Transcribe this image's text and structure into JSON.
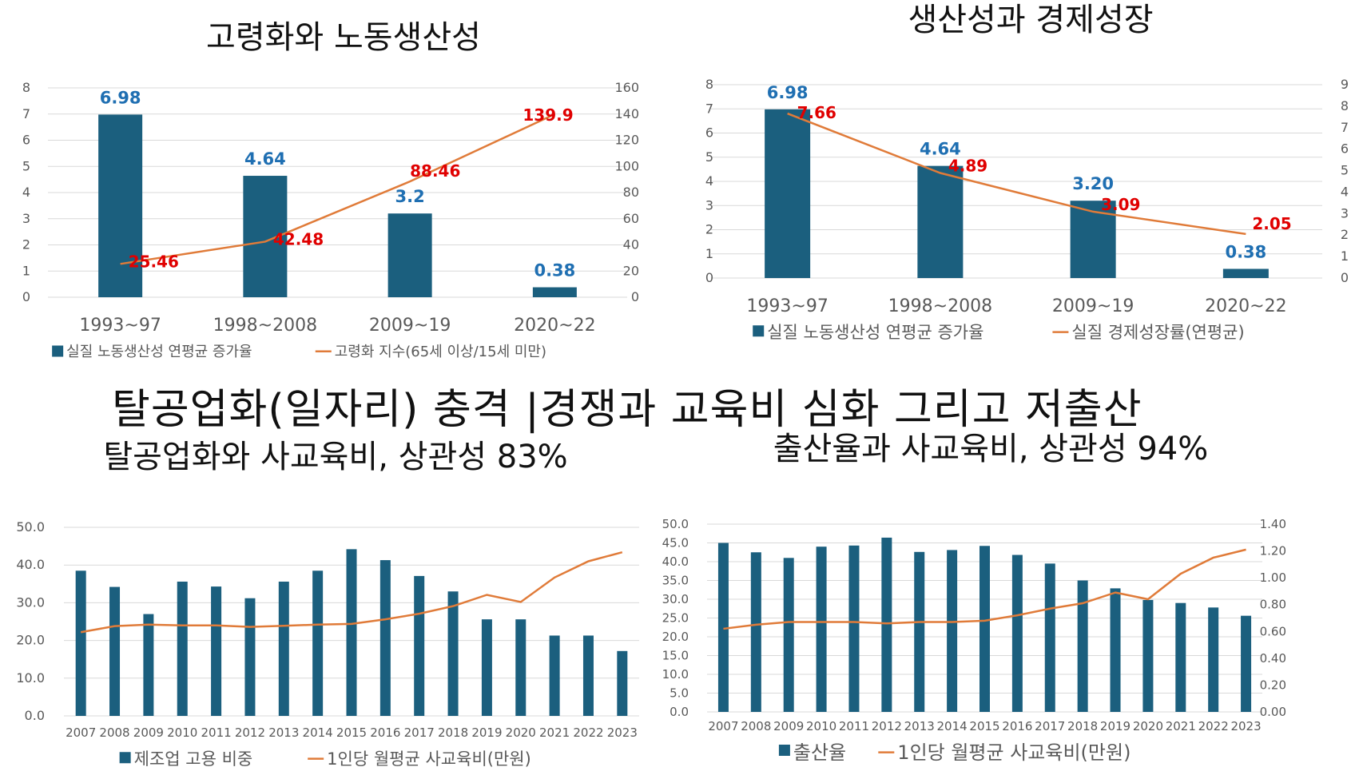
{
  "main_title": "탈공업화(일자리) 충격 |경쟁과 교육비 심화 그리고 저출산",
  "colors": {
    "bar": "#1b5f7e",
    "line": "#e07b39",
    "bar_label": "#1f6fb2",
    "line_label": "#e00000",
    "grid": "#d9d9d9",
    "axis_text": "#595959"
  },
  "chart_data": [
    {
      "id": "aging",
      "type": "bar+line",
      "title": "고령화와 노동생산성",
      "categories": [
        "1993~97",
        "1998~2008",
        "2009~19",
        "2020~22"
      ],
      "series": [
        {
          "name": "실질 노동생산성 연평균 증가율",
          "kind": "bar",
          "axis": "left",
          "values": [
            6.98,
            4.64,
            3.2,
            0.38
          ],
          "labels": [
            "6.98",
            "4.64",
            "3.2",
            "0.38"
          ]
        },
        {
          "name": "고령화 지수(65세 이상/15세 미만)",
          "kind": "line",
          "axis": "right",
          "values": [
            25.46,
            42.48,
            88.46,
            139.9
          ],
          "labels": [
            "25.46",
            "42.48",
            "88.46",
            "139.9"
          ]
        }
      ],
      "ylim": [
        0,
        8
      ],
      "yticks": [
        "0",
        "1",
        "2",
        "3",
        "4",
        "5",
        "6",
        "7",
        "8"
      ],
      "y2lim": [
        0,
        160
      ],
      "y2ticks": [
        "0",
        "20",
        "40",
        "60",
        "80",
        "100",
        "120",
        "140",
        "160"
      ],
      "grid": true,
      "legend": "bottom"
    },
    {
      "id": "growth",
      "type": "bar+line",
      "title": "생산성과 경제성장",
      "categories": [
        "1993~97",
        "1998~2008",
        "2009~19",
        "2020~22"
      ],
      "series": [
        {
          "name": "실질 노동생산성 연평균 증가율",
          "kind": "bar",
          "axis": "left",
          "values": [
            6.98,
            4.64,
            3.2,
            0.38
          ],
          "labels": [
            "6.98",
            "4.64",
            "3.20",
            "0.38"
          ]
        },
        {
          "name": "실질 경제성장률(연평균)",
          "kind": "line",
          "axis": "right",
          "values": [
            7.66,
            4.89,
            3.09,
            2.05
          ],
          "labels": [
            "7.66",
            "4.89",
            "3.09",
            "2.05"
          ]
        }
      ],
      "ylim": [
        0,
        8
      ],
      "yticks": [
        "0",
        "1",
        "2",
        "3",
        "4",
        "5",
        "6",
        "7",
        "8"
      ],
      "y2lim": [
        0,
        9
      ],
      "y2ticks": [
        "0",
        "1",
        "2",
        "3",
        "4",
        "5",
        "6",
        "7",
        "8",
        "9"
      ],
      "grid": true,
      "legend": "bottom"
    },
    {
      "id": "deind",
      "type": "bar+line",
      "title": "탈공업화와 사교육비, 상관성 83%",
      "categories": [
        "2007",
        "2008",
        "2009",
        "2010",
        "2011",
        "2012",
        "2013",
        "2014",
        "2015",
        "2016",
        "2017",
        "2018",
        "2019",
        "2020",
        "2021",
        "2022",
        "2023"
      ],
      "series": [
        {
          "name": "제조업 고용 비중",
          "kind": "bar",
          "axis": "left",
          "values": [
            38.5,
            34.2,
            27,
            35.6,
            34.3,
            31.2,
            35.6,
            38.5,
            44.2,
            41.3,
            37.1,
            33,
            25.6,
            25.6,
            21.3,
            21.3,
            17.2
          ]
        },
        {
          "name": "1인당 월평균 사교육비(만원)",
          "kind": "line",
          "axis": "left",
          "values": [
            22.2,
            23.8,
            24.2,
            24,
            24,
            23.6,
            23.9,
            24.2,
            24.4,
            25.6,
            27.1,
            29.1,
            32.1,
            30.2,
            36.7,
            41,
            43.4
          ]
        }
      ],
      "ylim": [
        0,
        50
      ],
      "yticks": [
        "0.0",
        "10.0",
        "20.0",
        "30.0",
        "40.0",
        "50.0"
      ],
      "grid": true,
      "legend": "bottom"
    },
    {
      "id": "birth",
      "type": "bar+line",
      "title": "출산율과 사교육비, 상관성 94%",
      "categories": [
        "2007",
        "2008",
        "2009",
        "2010",
        "2011",
        "2012",
        "2013",
        "2014",
        "2015",
        "2016",
        "2017",
        "2018",
        "2019",
        "2020",
        "2021",
        "2022",
        "2023"
      ],
      "series": [
        {
          "name": "출산율",
          "kind": "bar",
          "axis": "left",
          "values": [
            45,
            42.5,
            41,
            44,
            44.3,
            46.4,
            42.6,
            43.1,
            44.2,
            41.8,
            39.5,
            35,
            32.9,
            29.8,
            29,
            27.8,
            25.6
          ]
        },
        {
          "name": "1인당 월평균 사교육비(만원)",
          "kind": "line",
          "axis": "right",
          "values": [
            0.62,
            0.65,
            0.67,
            0.67,
            0.67,
            0.66,
            0.67,
            0.67,
            0.68,
            0.72,
            0.77,
            0.81,
            0.89,
            0.84,
            1.03,
            1.15,
            1.21
          ]
        }
      ],
      "ylim": [
        0,
        50
      ],
      "yticks": [
        "0.0",
        "5.0",
        "10.0",
        "15.0",
        "20.0",
        "25.0",
        "30.0",
        "35.0",
        "40.0",
        "45.0",
        "50.0"
      ],
      "y2lim": [
        0,
        1.4
      ],
      "y2ticks": [
        "0.00",
        "0.20",
        "0.40",
        "0.60",
        "0.80",
        "1.00",
        "1.20",
        "1.40"
      ],
      "grid": true,
      "legend": "bottom"
    }
  ]
}
